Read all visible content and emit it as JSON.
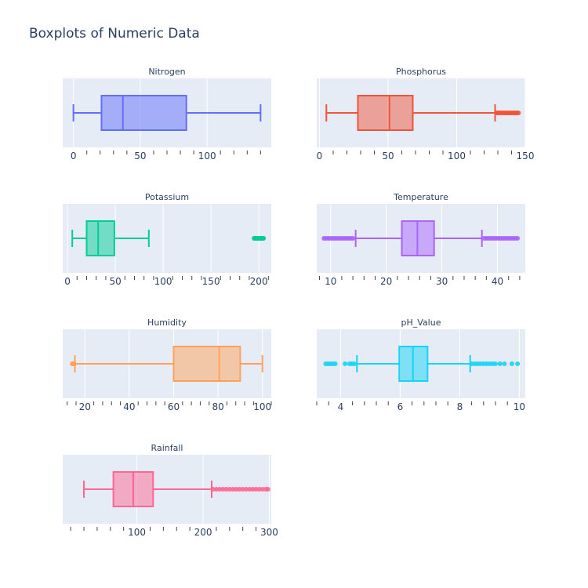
{
  "chart_data": {
    "type": "box",
    "title": "Boxplots of Numeric Data",
    "colors": {
      "plot_bg": "#e5ecf6",
      "grid": "#ffffff",
      "text": "#2a3f5f",
      "tick_mark": "#444444"
    },
    "subplots": [
      {
        "name": "Nitrogen",
        "color": "#636efa",
        "axis_range": [
          -8,
          148
        ],
        "tick_values": [
          0,
          50,
          100
        ],
        "tick_labels": [
          "0",
          "50",
          "100"
        ],
        "min": 0,
        "q1": 21,
        "median": 37,
        "q3": 84.5,
        "max": 140,
        "outliers": []
      },
      {
        "name": "Phosphorus",
        "color": "#ef553b",
        "axis_range": [
          -2,
          150
        ],
        "tick_values": [
          0,
          50,
          100,
          150
        ],
        "tick_labels": [
          "0",
          "50",
          "100",
          "150"
        ],
        "min": 5,
        "q1": 28,
        "median": 51,
        "q3": 68,
        "max": 128,
        "outliers": [
          129,
          130,
          131,
          132,
          133,
          134,
          135,
          136,
          137,
          138,
          139,
          140,
          141,
          142,
          143,
          144,
          145
        ]
      },
      {
        "name": "Potassium",
        "color": "#00cc96",
        "axis_range": [
          -5,
          213
        ],
        "tick_values": [
          0,
          50,
          100,
          150,
          200
        ],
        "tick_labels": [
          "0",
          "50",
          "100",
          "150",
          "200"
        ],
        "min": 5,
        "q1": 20,
        "median": 32,
        "q3": 49,
        "max": 85,
        "outliers": [
          195,
          196,
          197,
          198,
          199,
          200,
          201,
          202,
          203,
          204,
          205
        ]
      },
      {
        "name": "Temperature",
        "color": "#ab63fa",
        "axis_range": [
          7.5,
          45
        ],
        "tick_values": [
          10,
          20,
          30,
          40
        ],
        "tick_labels": [
          "10",
          "20",
          "30",
          "40"
        ],
        "min": 14.5,
        "q1": 22.8,
        "median": 25.6,
        "q3": 28.6,
        "max": 37.2,
        "outliers": [
          8.8,
          9.2,
          9.6,
          10.0,
          10.4,
          10.8,
          11.2,
          11.6,
          12.0,
          12.4,
          12.8,
          13.2,
          13.6,
          14.0,
          37.6,
          38.0,
          38.4,
          38.8,
          39.2,
          39.6,
          40.0,
          40.4,
          40.8,
          41.2,
          41.6,
          42.0,
          42.4,
          42.8,
          43.2,
          43.6
        ]
      },
      {
        "name": "Humidity",
        "color": "#ffa15a",
        "axis_range": [
          10,
          104
        ],
        "tick_values": [
          20,
          40,
          60,
          80,
          100
        ],
        "tick_labels": [
          "20",
          "40",
          "60",
          "80",
          "100"
        ],
        "min": 15.5,
        "q1": 60,
        "median": 80.5,
        "q3": 90,
        "max": 100,
        "outliers": [
          14.3,
          14.6,
          14.9,
          15.2
        ]
      },
      {
        "name": "pH_Value",
        "color": "#19d3f3",
        "axis_range": [
          3.2,
          10.2
        ],
        "tick_values": [
          4,
          6,
          8,
          10
        ],
        "tick_labels": [
          "4",
          "6",
          "8",
          "10"
        ],
        "min": 4.55,
        "q1": 5.97,
        "median": 6.43,
        "q3": 6.92,
        "max": 8.35,
        "outliers": [
          3.5,
          3.58,
          3.66,
          3.74,
          3.82,
          4.15,
          4.3,
          4.38,
          4.46,
          8.4,
          8.5,
          8.6,
          8.7,
          8.8,
          8.9,
          9.0,
          9.1,
          9.2,
          9.35,
          9.5,
          9.75,
          9.94
        ]
      },
      {
        "name": "Rainfall",
        "color": "#ff6692",
        "axis_range": [
          -12,
          303
        ],
        "tick_values": [
          100,
          200,
          300
        ],
        "tick_labels": [
          "100",
          "200",
          "300"
        ],
        "min": 20,
        "q1": 64.5,
        "median": 94.5,
        "q3": 124.5,
        "max": 213,
        "outliers": [
          215,
          220,
          225,
          230,
          235,
          240,
          245,
          250,
          255,
          260,
          265,
          270,
          275,
          280,
          285,
          290,
          295,
          298
        ]
      }
    ]
  }
}
